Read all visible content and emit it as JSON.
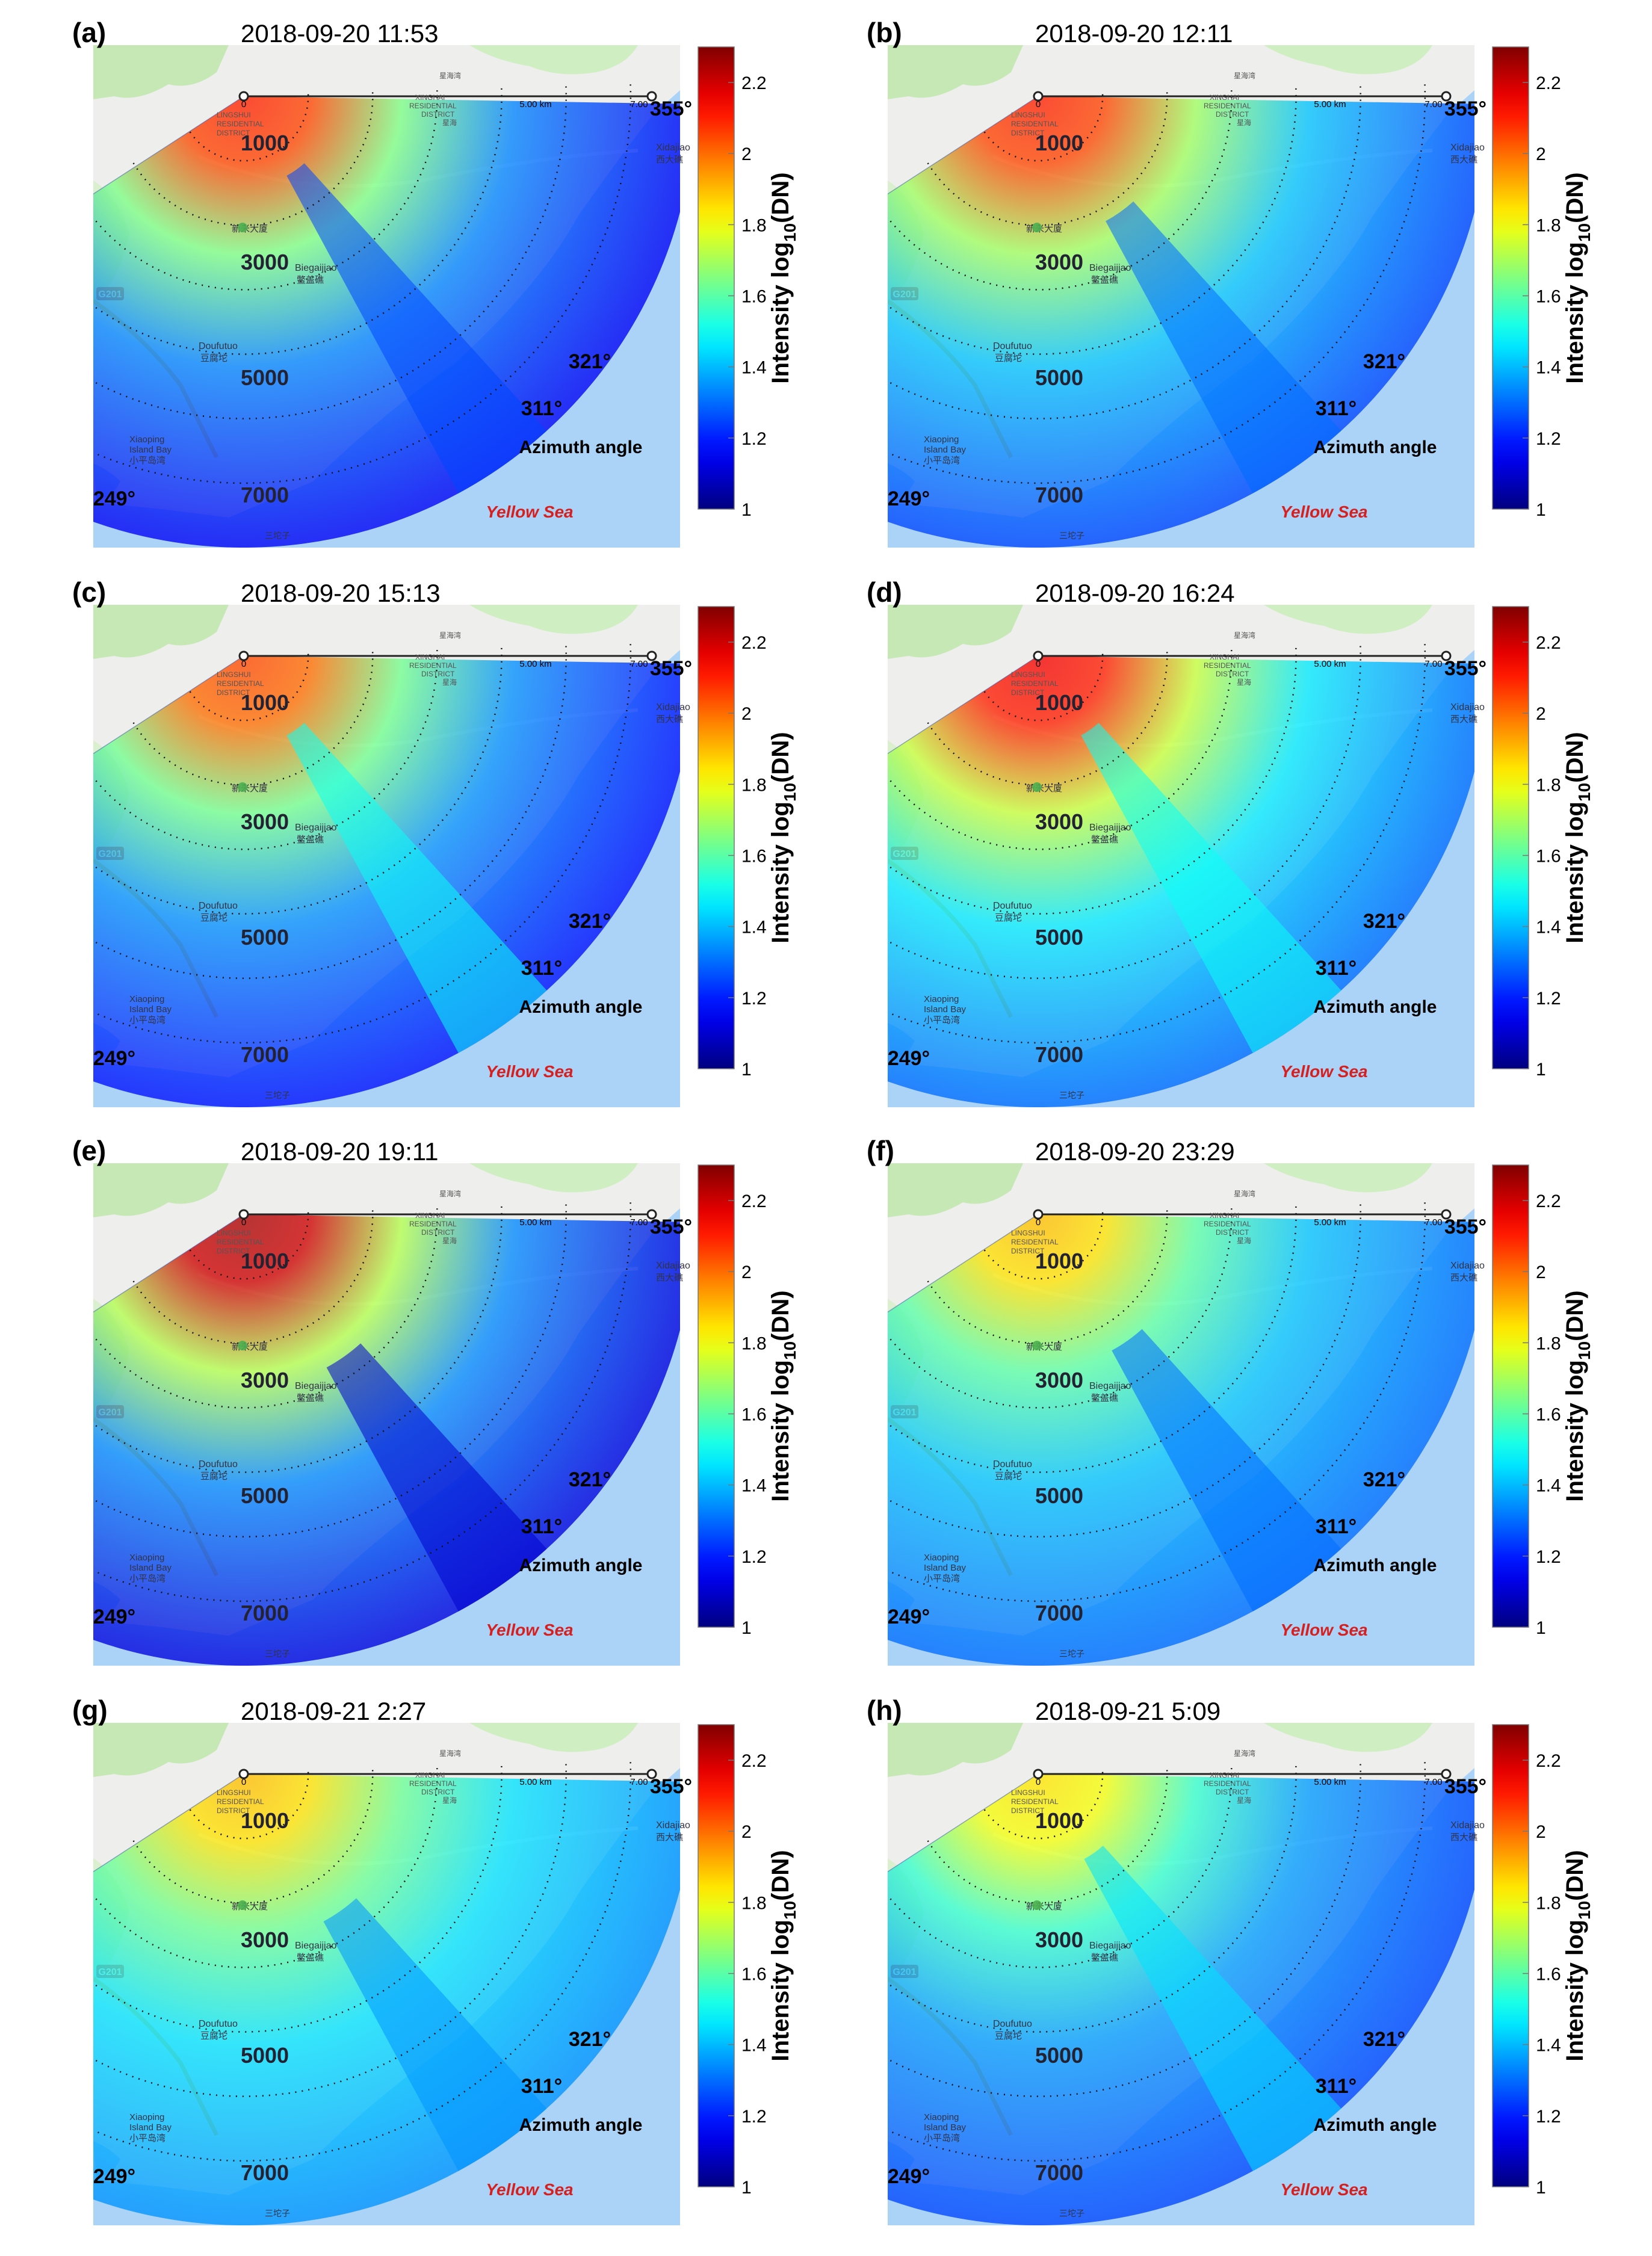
{
  "figure": {
    "colorbar": {
      "label_main": "Intensity log",
      "label_sub": "10",
      "label_tail": "(DN)",
      "min": 1,
      "max": 2.3,
      "ticks": [
        "1",
        "1.2",
        "1.4",
        "1.6",
        "1.8",
        "2",
        "2.2"
      ],
      "colormap": [
        "#00007f",
        "#0000ff",
        "#007fff",
        "#00ffff",
        "#7fff7f",
        "#ffff00",
        "#ff7f00",
        "#ff0000",
        "#7f0000"
      ]
    },
    "map_labels": {
      "scale_start": "0",
      "scale_mid": "5.00 km",
      "scale_end": "7.00",
      "district_1": "LINGSHUI",
      "district_2": "RESIDENTIAL",
      "district_3": "DISTRICT",
      "district_b1": "XINGHAI",
      "district_b2": "RESIDENTIAL",
      "district_b3": "DISTRICT",
      "place_top": "星海湾",
      "place_top2": "星海",
      "town_1": "Biegaijiao",
      "town_1_cn": "鳖盖礁",
      "town_2": "Doufutuo",
      "town_2_cn": "豆腐坨",
      "town_3a": "Xiaoping",
      "town_3b": "Island Bay",
      "town_3_cn": "小平岛湾",
      "town_4": "Xidajiao",
      "town_4_cn": "西大礁",
      "town_5_cn": "新米大厦",
      "town_6_cn": "三坨子",
      "road": "G201",
      "sea": "Yellow Sea",
      "azimuth": "Azimuth angle"
    },
    "ranges": [
      "1000",
      "3000",
      "5000",
      "7000"
    ],
    "angles": {
      "a249": "249°",
      "a311": "311°",
      "a321": "321°",
      "a355": "355°"
    }
  },
  "chart_data": [
    {
      "type": "heatmap",
      "panel": "(a)",
      "title": "2018-09-20   11:53",
      "near_intensity": 2.05,
      "far_intensity": 1.15,
      "plume_start_range_m": 1400,
      "plume_value": 1.25,
      "azimuth_range_deg": [
        249,
        355
      ],
      "range_rings_m": [
        1000,
        3000,
        5000,
        7000
      ],
      "colorbar_range": [
        1,
        2.3
      ]
    },
    {
      "type": "heatmap",
      "panel": "(b)",
      "title": "2018-09-20   12:11",
      "near_intensity": 2.05,
      "far_intensity": 1.25,
      "plume_start_range_m": 2200,
      "plume_value": 1.3,
      "azimuth_range_deg": [
        249,
        355
      ],
      "range_rings_m": [
        1000,
        3000,
        5000,
        7000
      ],
      "colorbar_range": [
        1,
        2.3
      ]
    },
    {
      "type": "heatmap",
      "panel": "(c)",
      "title": "2018-09-20   15:13",
      "near_intensity": 2.0,
      "far_intensity": 1.18,
      "plume_start_range_m": 1400,
      "plume_value": 1.5,
      "azimuth_range_deg": [
        249,
        355
      ],
      "range_rings_m": [
        1000,
        3000,
        5000,
        7000
      ],
      "colorbar_range": [
        1,
        2.3
      ]
    },
    {
      "type": "heatmap",
      "panel": "(d)",
      "title": "2018-09-20   16:24",
      "near_intensity": 2.1,
      "far_intensity": 1.3,
      "plume_start_range_m": 1400,
      "plume_value": 1.5,
      "azimuth_range_deg": [
        249,
        355
      ],
      "range_rings_m": [
        1000,
        3000,
        5000,
        7000
      ],
      "colorbar_range": [
        1,
        2.3
      ]
    },
    {
      "type": "heatmap",
      "panel": "(e)",
      "title": "2018-09-20   19:11",
      "near_intensity": 2.2,
      "far_intensity": 1.12,
      "plume_start_range_m": 2700,
      "plume_value": 1.1,
      "azimuth_range_deg": [
        249,
        355
      ],
      "range_rings_m": [
        1000,
        3000,
        5000,
        7000
      ],
      "colorbar_range": [
        1,
        2.3
      ]
    },
    {
      "type": "heatmap",
      "panel": "(f)",
      "title": "2018-09-20   23:29",
      "near_intensity": 1.85,
      "far_intensity": 1.3,
      "plume_start_range_m": 2400,
      "plume_value": 1.3,
      "azimuth_range_deg": [
        249,
        355
      ],
      "range_rings_m": [
        1000,
        3000,
        5000,
        7000
      ],
      "colorbar_range": [
        1,
        2.3
      ]
    },
    {
      "type": "heatmap",
      "panel": "(g)",
      "title": "2018-09-21   2:27",
      "near_intensity": 1.85,
      "far_intensity": 1.35,
      "plume_start_range_m": 2600,
      "plume_value": 1.35,
      "azimuth_range_deg": [
        249,
        355
      ],
      "range_rings_m": [
        1000,
        3000,
        5000,
        7000
      ],
      "colorbar_range": [
        1,
        2.3
      ]
    },
    {
      "type": "heatmap",
      "panel": "(h)",
      "title": "2018-09-21   5:09",
      "near_intensity": 1.8,
      "far_intensity": 1.25,
      "plume_start_range_m": 1500,
      "plume_value": 1.45,
      "azimuth_range_deg": [
        249,
        355
      ],
      "range_rings_m": [
        1000,
        3000,
        5000,
        7000
      ],
      "colorbar_range": [
        1,
        2.3
      ]
    }
  ]
}
